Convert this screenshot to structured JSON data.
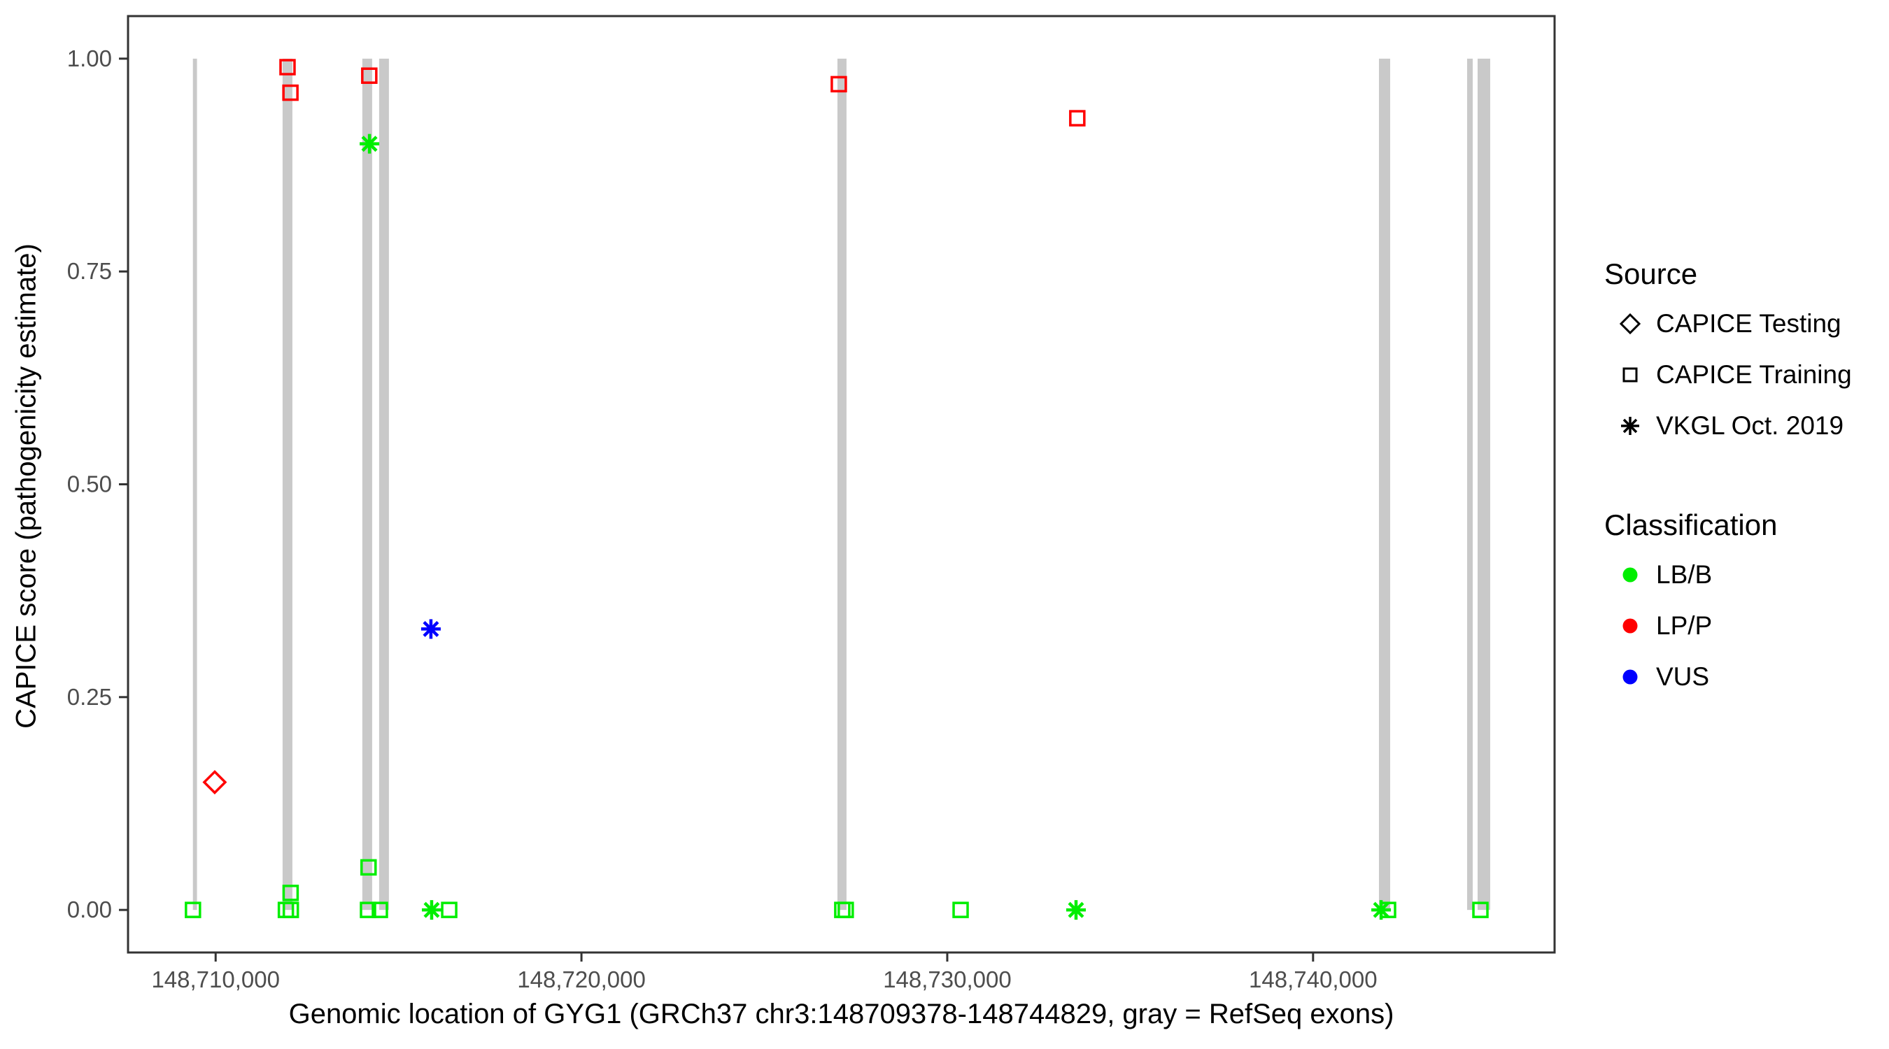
{
  "chart_data": {
    "type": "scatter",
    "title": "",
    "xlabel": "Genomic location of GYG1 (GRCh37 chr3:148709378-148744829, gray = RefSeq exons)",
    "ylabel": "CAPICE score (pathogenicity estimate)",
    "xlim": [
      148707605,
      148746602
    ],
    "ylim": [
      -0.05,
      1.05
    ],
    "grid": false,
    "x_ticks": [
      {
        "value": 148710000,
        "label": "148,710,000"
      },
      {
        "value": 148720000,
        "label": "148,720,000"
      },
      {
        "value": 148730000,
        "label": "148,730,000"
      },
      {
        "value": 148740000,
        "label": "148,740,000"
      }
    ],
    "y_ticks": [
      {
        "value": 0.0,
        "label": "0.00"
      },
      {
        "value": 0.25,
        "label": "0.25"
      },
      {
        "value": 0.5,
        "label": "0.50"
      },
      {
        "value": 0.75,
        "label": "0.75"
      },
      {
        "value": 1.0,
        "label": "1.00"
      }
    ],
    "exons_note": "gray vertical bars = RefSeq exons, drawn from y=0 to y=1",
    "exons": [
      [
        148709378,
        148709490
      ],
      [
        148711830,
        148712098
      ],
      [
        148714010,
        148714278
      ],
      [
        148714469,
        148714737
      ],
      [
        148726998,
        148727246
      ],
      [
        148741801,
        148742107
      ],
      [
        148744211,
        148744364
      ],
      [
        148744498,
        148744842
      ]
    ],
    "series": [
      {
        "name": "CAPICE Testing LP/P",
        "source": "CAPICE Testing",
        "classification": "LP/P",
        "marker": "diamond",
        "color": "#FF0000",
        "points": [
          [
            148709975,
            0.15
          ]
        ]
      },
      {
        "name": "CAPICE Training LP/P",
        "source": "CAPICE Training",
        "classification": "LP/P",
        "marker": "square",
        "color": "#FF0000",
        "points": [
          [
            148711965,
            0.99
          ],
          [
            148712045,
            0.96
          ],
          [
            148714200,
            0.98
          ],
          [
            148727035,
            0.97
          ],
          [
            148733555,
            0.93
          ]
        ]
      },
      {
        "name": "CAPICE Training LB/B",
        "source": "CAPICE Training",
        "classification": "LB/B",
        "marker": "square",
        "color": "#00EE00",
        "points": [
          [
            148709380,
            0.0
          ],
          [
            148711920,
            0.0
          ],
          [
            148712055,
            0.0
          ],
          [
            148712050,
            0.02
          ],
          [
            148714165,
            0.0
          ],
          [
            148714180,
            0.05
          ],
          [
            148714490,
            0.0
          ],
          [
            148716385,
            0.0
          ],
          [
            148727130,
            0.0
          ],
          [
            148727225,
            0.0
          ],
          [
            148730365,
            0.0
          ],
          [
            148742050,
            0.0
          ],
          [
            148744575,
            0.0
          ]
        ]
      },
      {
        "name": "VKGL Oct. 2019 LB/B",
        "source": "VKGL Oct. 2019",
        "classification": "LB/B",
        "marker": "asterisk",
        "color": "#00EE00",
        "points": [
          [
            148714205,
            0.9
          ],
          [
            148715905,
            0.0
          ],
          [
            148733520,
            0.0
          ],
          [
            148741860,
            0.0
          ]
        ]
      },
      {
        "name": "VKGL Oct. 2019 VUS",
        "source": "VKGL Oct. 2019",
        "classification": "VUS",
        "marker": "asterisk",
        "color": "#0000FF",
        "points": [
          [
            148715885,
            0.33
          ]
        ]
      }
    ]
  },
  "legend": {
    "source": {
      "title": "Source",
      "items": [
        {
          "label": "CAPICE Testing",
          "marker": "diamond"
        },
        {
          "label": "CAPICE Training",
          "marker": "square"
        },
        {
          "label": "VKGL Oct. 2019",
          "marker": "asterisk"
        }
      ]
    },
    "classification": {
      "title": "Classification",
      "items": [
        {
          "label": "LB/B",
          "color": "#00EE00"
        },
        {
          "label": "LP/P",
          "color": "#FF0000"
        },
        {
          "label": "VUS",
          "color": "#0000FF"
        }
      ]
    }
  },
  "colors": {
    "exon_gray": "#C9C9C9",
    "panel_border": "#333333",
    "tick_text": "#4D4D4D",
    "lbb_green": "#00EE00",
    "lpp_red": "#FF0000",
    "vus_blue": "#0000FF"
  }
}
